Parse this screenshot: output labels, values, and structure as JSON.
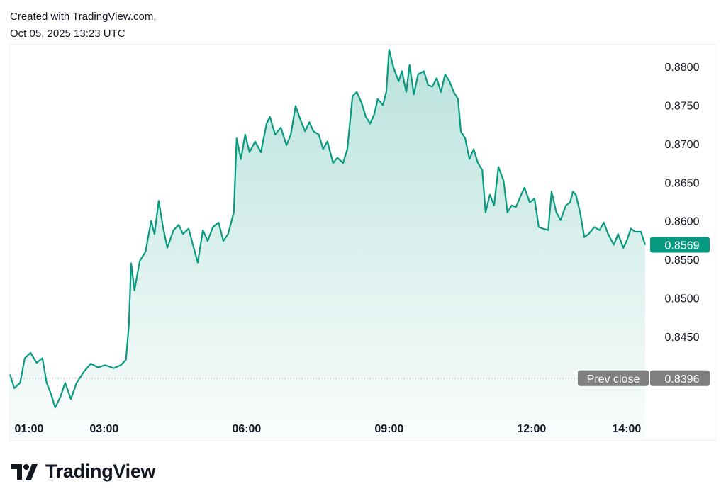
{
  "header": {
    "line1": "Created with TradingView.com,",
    "line2": "Oct 05, 2025 13:23 UTC"
  },
  "logo_text": "TradingView",
  "colors": {
    "line": "#089981",
    "last_price_bg": "#089981",
    "prev_close_bg": "#7f7f7f"
  },
  "chart_data": {
    "type": "area",
    "xlabel": "",
    "ylabel": "",
    "ylim": [
      0.836,
      0.882
    ],
    "x_ticks": [
      {
        "label": "01:00",
        "t": 1.0
      },
      {
        "label": "03:00",
        "t": 2.58
      },
      {
        "label": "06:00",
        "t": 5.58
      },
      {
        "label": "09:00",
        "t": 8.58
      },
      {
        "label": "12:00",
        "t": 11.58
      },
      {
        "label": "14:00",
        "t": 13.58
      }
    ],
    "y_ticks": [
      {
        "label": "0.8800",
        "v": 0.88
      },
      {
        "label": "0.8750",
        "v": 0.875
      },
      {
        "label": "0.8700",
        "v": 0.87
      },
      {
        "label": "0.8650",
        "v": 0.865
      },
      {
        "label": "0.8600",
        "v": 0.86
      },
      {
        "label": "0.8550",
        "v": 0.855
      },
      {
        "label": "0.8500",
        "v": 0.85
      },
      {
        "label": "0.8450",
        "v": 0.845
      }
    ],
    "last_price": {
      "label": "0.8569",
      "v": 0.8569
    },
    "prev_close": {
      "name": "Prev close",
      "label": "0.8396",
      "v": 0.8396
    },
    "points": [
      [
        0.6,
        0.8401
      ],
      [
        0.69,
        0.8383
      ],
      [
        0.81,
        0.839
      ],
      [
        0.91,
        0.8422
      ],
      [
        1.03,
        0.8429
      ],
      [
        1.16,
        0.8416
      ],
      [
        1.28,
        0.8422
      ],
      [
        1.37,
        0.839
      ],
      [
        1.46,
        0.8376
      ],
      [
        1.55,
        0.8358
      ],
      [
        1.66,
        0.8372
      ],
      [
        1.76,
        0.839
      ],
      [
        1.88,
        0.8369
      ],
      [
        2.0,
        0.839
      ],
      [
        2.15,
        0.8404
      ],
      [
        2.3,
        0.8415
      ],
      [
        2.45,
        0.841
      ],
      [
        2.6,
        0.8413
      ],
      [
        2.78,
        0.8409
      ],
      [
        2.93,
        0.8413
      ],
      [
        3.04,
        0.842
      ],
      [
        3.1,
        0.8464
      ],
      [
        3.15,
        0.8545
      ],
      [
        3.22,
        0.851
      ],
      [
        3.33,
        0.8548
      ],
      [
        3.45,
        0.856
      ],
      [
        3.57,
        0.86
      ],
      [
        3.64,
        0.8583
      ],
      [
        3.73,
        0.8626
      ],
      [
        3.82,
        0.8592
      ],
      [
        3.91,
        0.8565
      ],
      [
        4.04,
        0.8588
      ],
      [
        4.15,
        0.8595
      ],
      [
        4.24,
        0.8583
      ],
      [
        4.36,
        0.859
      ],
      [
        4.45,
        0.8569
      ],
      [
        4.55,
        0.8546
      ],
      [
        4.66,
        0.8588
      ],
      [
        4.76,
        0.8574
      ],
      [
        4.87,
        0.8592
      ],
      [
        4.99,
        0.8598
      ],
      [
        5.09,
        0.8574
      ],
      [
        5.19,
        0.8583
      ],
      [
        5.31,
        0.8611
      ],
      [
        5.37,
        0.8707
      ],
      [
        5.46,
        0.868
      ],
      [
        5.55,
        0.8712
      ],
      [
        5.64,
        0.8689
      ],
      [
        5.76,
        0.8703
      ],
      [
        5.88,
        0.8689
      ],
      [
        6.0,
        0.8726
      ],
      [
        6.07,
        0.8735
      ],
      [
        6.18,
        0.8712
      ],
      [
        6.3,
        0.8721
      ],
      [
        6.42,
        0.8698
      ],
      [
        6.51,
        0.8712
      ],
      [
        6.61,
        0.8749
      ],
      [
        6.72,
        0.873
      ],
      [
        6.81,
        0.8716
      ],
      [
        6.9,
        0.8728
      ],
      [
        6.99,
        0.8716
      ],
      [
        7.1,
        0.8712
      ],
      [
        7.19,
        0.8693
      ],
      [
        7.28,
        0.8703
      ],
      [
        7.4,
        0.8675
      ],
      [
        7.49,
        0.8682
      ],
      [
        7.61,
        0.8675
      ],
      [
        7.7,
        0.8693
      ],
      [
        7.81,
        0.8762
      ],
      [
        7.9,
        0.8767
      ],
      [
        8.0,
        0.8753
      ],
      [
        8.09,
        0.8735
      ],
      [
        8.18,
        0.8726
      ],
      [
        8.27,
        0.8739
      ],
      [
        8.34,
        0.8758
      ],
      [
        8.45,
        0.875
      ],
      [
        8.52,
        0.8767
      ],
      [
        8.58,
        0.8822
      ],
      [
        8.67,
        0.8799
      ],
      [
        8.78,
        0.8781
      ],
      [
        8.85,
        0.8794
      ],
      [
        8.94,
        0.8767
      ],
      [
        9.01,
        0.8802
      ],
      [
        9.1,
        0.8764
      ],
      [
        9.19,
        0.879
      ],
      [
        9.31,
        0.8794
      ],
      [
        9.4,
        0.8776
      ],
      [
        9.49,
        0.8774
      ],
      [
        9.58,
        0.8785
      ],
      [
        9.67,
        0.8767
      ],
      [
        9.76,
        0.879
      ],
      [
        9.85,
        0.8781
      ],
      [
        9.94,
        0.8767
      ],
      [
        10.03,
        0.8758
      ],
      [
        10.09,
        0.8716
      ],
      [
        10.18,
        0.8707
      ],
      [
        10.27,
        0.868
      ],
      [
        10.36,
        0.8693
      ],
      [
        10.45,
        0.8675
      ],
      [
        10.54,
        0.8666
      ],
      [
        10.61,
        0.8611
      ],
      [
        10.7,
        0.8634
      ],
      [
        10.79,
        0.862
      ],
      [
        10.88,
        0.867
      ],
      [
        10.99,
        0.8652
      ],
      [
        11.07,
        0.8611
      ],
      [
        11.16,
        0.862
      ],
      [
        11.25,
        0.8618
      ],
      [
        11.36,
        0.8634
      ],
      [
        11.43,
        0.8643
      ],
      [
        11.54,
        0.8624
      ],
      [
        11.64,
        0.8629
      ],
      [
        11.73,
        0.8592
      ],
      [
        11.82,
        0.859
      ],
      [
        11.93,
        0.8588
      ],
      [
        12.0,
        0.8638
      ],
      [
        12.1,
        0.8611
      ],
      [
        12.19,
        0.8601
      ],
      [
        12.3,
        0.862
      ],
      [
        12.39,
        0.8624
      ],
      [
        12.45,
        0.8638
      ],
      [
        12.51,
        0.8634
      ],
      [
        12.6,
        0.8611
      ],
      [
        12.69,
        0.8579
      ],
      [
        12.78,
        0.8583
      ],
      [
        12.9,
        0.8592
      ],
      [
        13.01,
        0.8588
      ],
      [
        13.1,
        0.8598
      ],
      [
        13.19,
        0.8583
      ],
      [
        13.31,
        0.8569
      ],
      [
        13.4,
        0.8583
      ],
      [
        13.51,
        0.8565
      ],
      [
        13.58,
        0.8574
      ],
      [
        13.67,
        0.859
      ],
      [
        13.76,
        0.8586
      ],
      [
        13.88,
        0.8586
      ],
      [
        13.97,
        0.8569
      ]
    ]
  }
}
